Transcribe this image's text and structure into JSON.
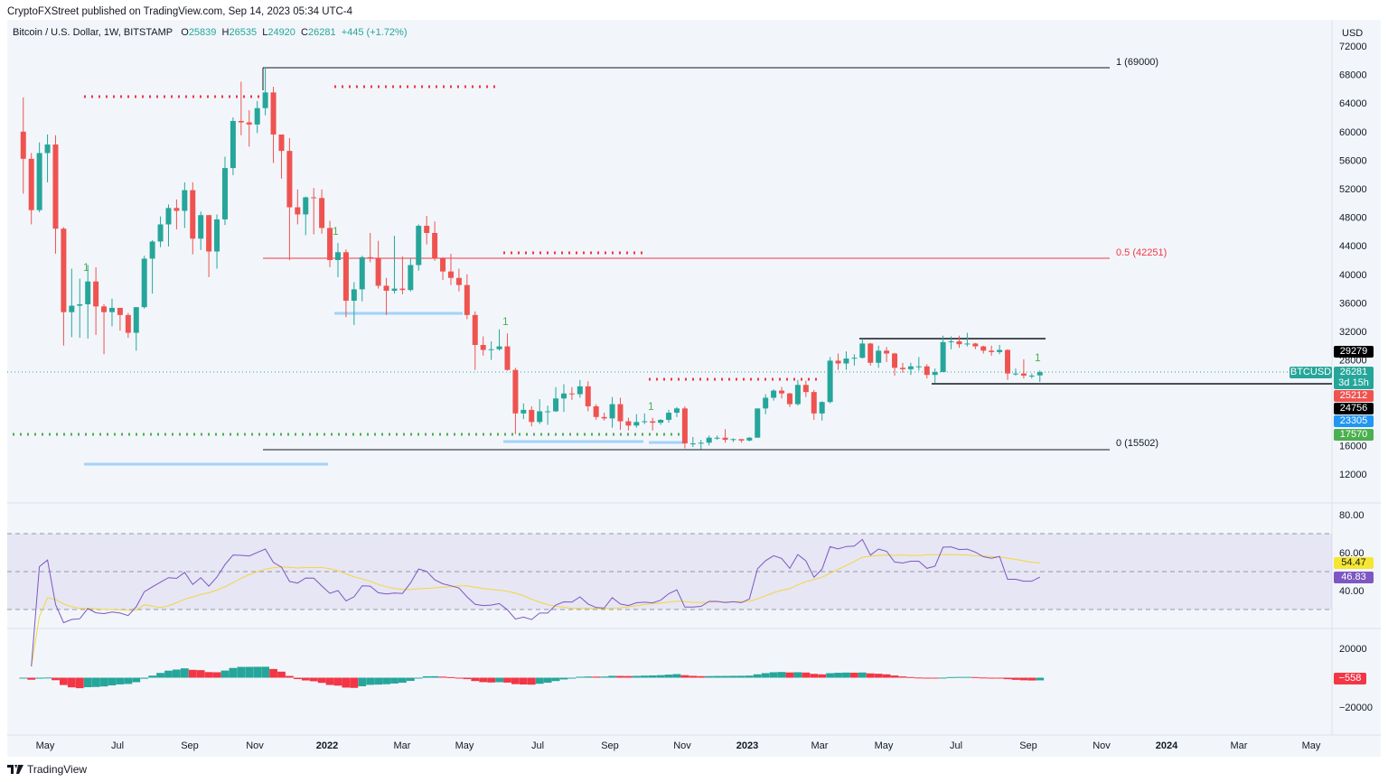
{
  "publisher": "CryptoFXStreet published on TradingView.com, Sep 14, 2023 05:34 UTC-4",
  "legend": {
    "symbol": "Bitcoin / U.S. Dollar, 1W, BITSTAMP",
    "o_label": "O",
    "o": "25839",
    "h_label": "H",
    "h": "26535",
    "l_label": "L",
    "l": "24920",
    "c_label": "C",
    "c": "26281",
    "change": "+445 (+1.72%)"
  },
  "currency": "USD",
  "footer": {
    "brand": "TradingView",
    "logo_icon": "tradingview-logo-icon"
  },
  "colors": {
    "up": "#26a69a",
    "down": "#ef5350",
    "rsi": "#7e57c2",
    "rsi_ma": "#f5d63d",
    "fib_mid": "#f23645",
    "fib": "#131722",
    "support_blue": "#90caf9",
    "dots_green": "#4caf50"
  },
  "price_axis": [
    "72000",
    "68000",
    "64000",
    "60000",
    "56000",
    "52000",
    "48000",
    "44000",
    "40000",
    "36000",
    "32000",
    "28000",
    "16000",
    "12000"
  ],
  "price_badges": {
    "level1": "29279",
    "last": "26281",
    "countdown": "3d 15h",
    "symbol": "BTCUSD",
    "level2": "25212",
    "level3": "24756",
    "level4": "23305",
    "level5": "17570"
  },
  "fib": {
    "top": "1 (69000)",
    "mid": "0.5 (42251)",
    "bottom": "0 (15502)"
  },
  "markers": [
    "1",
    "1",
    "1",
    "1",
    "1"
  ],
  "rsi_axis": [
    "80.00",
    "60.00",
    "40.00"
  ],
  "rsi_badges": {
    "ma": "54.47",
    "rsi": "46.83"
  },
  "macd_axis": [
    "20000",
    "−20000"
  ],
  "macd_badge": "−558",
  "time_axis": [
    "May",
    "Jul",
    "Sep",
    "Nov",
    "2022",
    "Mar",
    "May",
    "Jul",
    "Sep",
    "Nov",
    "2023",
    "Mar",
    "May",
    "Jul",
    "Sep",
    "Nov",
    "2024",
    "Mar",
    "May"
  ],
  "chart_data": {
    "type": "candlestick",
    "title": "Bitcoin / U.S. Dollar, 1W, BITSTAMP",
    "ylim": [
      10000,
      74000
    ],
    "candles_fields": [
      "week",
      "open",
      "high",
      "low",
      "close"
    ],
    "candles": [
      [
        "2021-04-12",
        60000,
        64800,
        51300,
        56200
      ],
      [
        "2021-04-19",
        56200,
        57000,
        47000,
        49000
      ],
      [
        "2021-04-26",
        49000,
        58500,
        48700,
        57000
      ],
      [
        "2021-05-03",
        57000,
        59600,
        52900,
        58200
      ],
      [
        "2021-05-10",
        58200,
        59500,
        42900,
        46400
      ],
      [
        "2021-05-17",
        46400,
        46600,
        30000,
        34700
      ],
      [
        "2021-05-24",
        34700,
        40800,
        31200,
        35600
      ],
      [
        "2021-05-31",
        35600,
        39400,
        31100,
        35800
      ],
      [
        "2021-06-07",
        35800,
        41300,
        31000,
        39000
      ],
      [
        "2021-06-14",
        39000,
        41000,
        31500,
        35500
      ],
      [
        "2021-06-21",
        35500,
        35800,
        28800,
        34700
      ],
      [
        "2021-06-28",
        34700,
        36600,
        32700,
        35300
      ],
      [
        "2021-07-05",
        35300,
        35100,
        32100,
        34300
      ],
      [
        "2021-07-12",
        34300,
        34600,
        31100,
        31800
      ],
      [
        "2021-07-19",
        31800,
        35400,
        29300,
        35400
      ],
      [
        "2021-07-26",
        35400,
        42600,
        35200,
        42200
      ],
      [
        "2021-08-02",
        42200,
        44800,
        37300,
        44600
      ],
      [
        "2021-08-09",
        44600,
        48100,
        43800,
        47000
      ],
      [
        "2021-08-16",
        47000,
        49800,
        43900,
        49300
      ],
      [
        "2021-08-23",
        49300,
        50500,
        46300,
        48900
      ],
      [
        "2021-08-30",
        48900,
        52900,
        46500,
        51800
      ],
      [
        "2021-09-06",
        51800,
        52900,
        42800,
        45000
      ],
      [
        "2021-09-13",
        45000,
        48800,
        43400,
        48300
      ],
      [
        "2021-09-20",
        48300,
        48300,
        39600,
        43200
      ],
      [
        "2021-09-27",
        43200,
        48400,
        40800,
        47700
      ],
      [
        "2021-10-04",
        47700,
        56500,
        46900,
        54900
      ],
      [
        "2021-10-11",
        54900,
        62000,
        53900,
        61500
      ],
      [
        "2021-10-18",
        61500,
        67000,
        59500,
        61300
      ],
      [
        "2021-10-25",
        61300,
        63000,
        57900,
        61000
      ],
      [
        "2021-11-01",
        61000,
        64300,
        59800,
        63300
      ],
      [
        "2021-11-08",
        63300,
        69000,
        62300,
        65500
      ],
      [
        "2021-11-15",
        65500,
        66300,
        55600,
        59600
      ],
      [
        "2021-11-22",
        59600,
        59400,
        53400,
        57300
      ],
      [
        "2021-11-29",
        57300,
        59100,
        42000,
        49400
      ],
      [
        "2021-12-06",
        49400,
        51900,
        47000,
        48400
      ],
      [
        "2021-12-13",
        48400,
        50900,
        45500,
        50800
      ],
      [
        "2021-12-20",
        50800,
        52100,
        45600,
        50700
      ],
      [
        "2021-12-27",
        50700,
        51900,
        45700,
        46500
      ],
      [
        "2022-01-03",
        46500,
        47500,
        41000,
        42000
      ],
      [
        "2022-01-10",
        42000,
        44400,
        39600,
        43100
      ],
      [
        "2022-01-17",
        43100,
        43500,
        34000,
        36300
      ],
      [
        "2022-01-24",
        36300,
        38900,
        32900,
        37900
      ],
      [
        "2022-01-31",
        37900,
        42600,
        36200,
        42400
      ],
      [
        "2022-02-07",
        42400,
        45800,
        41700,
        42200
      ],
      [
        "2022-02-14",
        42200,
        44700,
        38000,
        38400
      ],
      [
        "2022-02-21",
        38400,
        39500,
        34300,
        37700
      ],
      [
        "2022-02-28",
        37700,
        45400,
        37300,
        38000
      ],
      [
        "2022-03-07",
        38000,
        42500,
        37200,
        37800
      ],
      [
        "2022-03-14",
        37800,
        42300,
        37600,
        41300
      ],
      [
        "2022-03-21",
        41300,
        47000,
        40500,
        46800
      ],
      [
        "2022-03-28",
        46800,
        48200,
        44200,
        45800
      ],
      [
        "2022-04-04",
        45800,
        47400,
        41900,
        42200
      ],
      [
        "2022-04-11",
        42200,
        42400,
        39200,
        40400
      ],
      [
        "2022-04-18",
        40400,
        42900,
        38500,
        39500
      ],
      [
        "2022-04-25",
        39500,
        40800,
        37600,
        38500
      ],
      [
        "2022-05-02",
        38500,
        40000,
        33700,
        34300
      ],
      [
        "2022-05-09",
        34300,
        34800,
        26600,
        30100
      ],
      [
        "2022-05-16",
        30100,
        31300,
        28600,
        29400
      ],
      [
        "2022-05-23",
        29400,
        30600,
        28000,
        29500
      ],
      [
        "2022-05-30",
        29500,
        32300,
        29300,
        29900
      ],
      [
        "2022-06-06",
        29900,
        31700,
        26500,
        26600
      ],
      [
        "2022-06-13",
        26600,
        26900,
        17600,
        20500
      ],
      [
        "2022-06-20",
        20500,
        21900,
        19700,
        21000
      ],
      [
        "2022-06-27",
        21000,
        21500,
        18700,
        19300
      ],
      [
        "2022-07-04",
        19300,
        22500,
        19000,
        20800
      ],
      [
        "2022-07-11",
        20800,
        21600,
        18900,
        20800
      ],
      [
        "2022-07-18",
        20800,
        24200,
        20700,
        22600
      ],
      [
        "2022-07-25",
        22600,
        24600,
        20700,
        23300
      ],
      [
        "2022-08-01",
        23300,
        24200,
        22400,
        23200
      ],
      [
        "2022-08-08",
        23200,
        25200,
        22700,
        24300
      ],
      [
        "2022-08-15",
        24300,
        25000,
        20800,
        21500
      ],
      [
        "2022-08-22",
        21500,
        21800,
        19600,
        20000
      ],
      [
        "2022-08-29",
        20000,
        20600,
        19500,
        19800
      ],
      [
        "2022-09-05",
        19800,
        22800,
        18500,
        21800
      ],
      [
        "2022-09-12",
        21800,
        22700,
        18200,
        19400
      ],
      [
        "2022-09-19",
        19400,
        19900,
        18100,
        18800
      ],
      [
        "2022-09-26",
        18800,
        20400,
        18500,
        19300
      ],
      [
        "2022-10-03",
        19300,
        20500,
        19000,
        19400
      ],
      [
        "2022-10-10",
        19400,
        19900,
        18100,
        19200
      ],
      [
        "2022-10-17",
        19200,
        19700,
        18900,
        19600
      ],
      [
        "2022-10-24",
        19600,
        21000,
        19200,
        20600
      ],
      [
        "2022-10-31",
        20600,
        21400,
        20000,
        21200
      ],
      [
        "2022-11-07",
        21200,
        21500,
        15600,
        16300
      ],
      [
        "2022-11-14",
        16300,
        17200,
        15800,
        16300
      ],
      [
        "2022-11-21",
        16300,
        16800,
        15500,
        16400
      ],
      [
        "2022-11-28",
        16400,
        17400,
        16000,
        17100
      ],
      [
        "2022-12-05",
        17100,
        17400,
        16800,
        17100
      ],
      [
        "2022-12-12",
        17100,
        18300,
        16400,
        16800
      ],
      [
        "2022-12-19",
        16800,
        17000,
        16500,
        16900
      ],
      [
        "2022-12-26",
        16900,
        16900,
        16400,
        16700
      ],
      [
        "2023-01-02",
        16700,
        17200,
        16600,
        17100
      ],
      [
        "2023-01-09",
        17100,
        21200,
        17100,
        21200
      ],
      [
        "2023-01-16",
        21200,
        23200,
        20400,
        22700
      ],
      [
        "2023-01-23",
        22700,
        23900,
        22300,
        23700
      ],
      [
        "2023-01-30",
        23700,
        24200,
        22600,
        23300
      ],
      [
        "2023-02-06",
        23300,
        23400,
        21400,
        21800
      ],
      [
        "2023-02-13",
        21800,
        25200,
        21600,
        24500
      ],
      [
        "2023-02-20",
        24500,
        25100,
        22800,
        23500
      ],
      [
        "2023-02-27",
        23500,
        23800,
        19600,
        20500
      ],
      [
        "2023-03-06",
        20500,
        22200,
        19500,
        22100
      ],
      [
        "2023-03-13",
        22100,
        28400,
        21900,
        27900
      ],
      [
        "2023-03-20",
        27900,
        28900,
        26600,
        27500
      ],
      [
        "2023-03-27",
        27500,
        29200,
        26600,
        28200
      ],
      [
        "2023-04-03",
        28200,
        28800,
        27200,
        28300
      ],
      [
        "2023-04-10",
        28300,
        31000,
        28200,
        30300
      ],
      [
        "2023-04-17",
        30300,
        30400,
        27200,
        27600
      ],
      [
        "2023-04-24",
        27600,
        30000,
        26900,
        29300
      ],
      [
        "2023-05-01",
        29300,
        29800,
        27700,
        28900
      ],
      [
        "2023-05-08",
        28900,
        29000,
        25800,
        26900
      ],
      [
        "2023-05-15",
        26900,
        27600,
        26200,
        26700
      ],
      [
        "2023-05-22",
        26700,
        27600,
        25900,
        27100
      ],
      [
        "2023-05-29",
        27100,
        28400,
        26500,
        27100
      ],
      [
        "2023-06-05",
        27100,
        27400,
        25400,
        25900
      ],
      [
        "2023-06-12",
        25900,
        26800,
        24800,
        26300
      ],
      [
        "2023-06-19",
        26300,
        31400,
        26300,
        30500
      ],
      [
        "2023-06-26",
        30500,
        31300,
        29500,
        30600
      ],
      [
        "2023-07-03",
        30600,
        31400,
        29700,
        30200
      ],
      [
        "2023-07-10",
        30200,
        31800,
        29900,
        30300
      ],
      [
        "2023-07-17",
        30300,
        30400,
        29500,
        29900
      ],
      [
        "2023-07-24",
        29900,
        30000,
        28900,
        29300
      ],
      [
        "2023-07-31",
        29300,
        30000,
        28600,
        29100
      ],
      [
        "2023-08-07",
        29100,
        30100,
        28800,
        29400
      ],
      [
        "2023-08-14",
        29400,
        29500,
        25200,
        26100
      ],
      [
        "2023-08-21",
        26100,
        26800,
        25800,
        26100
      ],
      [
        "2023-08-28",
        26100,
        28100,
        25400,
        25800
      ],
      [
        "2023-09-04",
        25800,
        26100,
        25400,
        25800
      ],
      [
        "2023-09-11",
        25839,
        26535,
        24920,
        26281
      ]
    ],
    "horizontal_levels": [
      69000,
      42251,
      15502,
      29279,
      25212,
      24756,
      23305,
      17570
    ],
    "rsi_bands": [
      70,
      50,
      30
    ],
    "rsi_ylim": [
      20,
      85
    ],
    "macd_ylim": [
      -30000,
      30000
    ]
  }
}
